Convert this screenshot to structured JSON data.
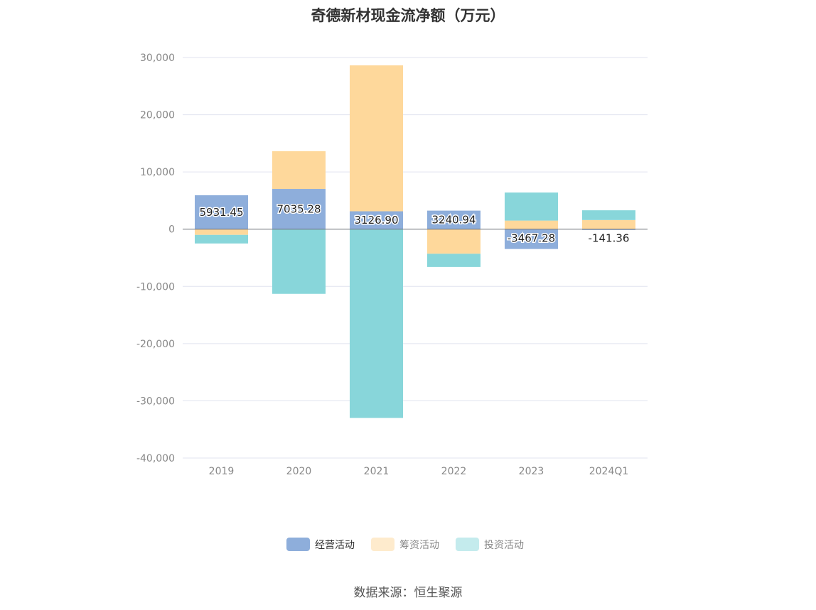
{
  "chart_data": {
    "type": "bar",
    "stacked": true,
    "title": "奇德新材现金流净额（万元）",
    "categories": [
      "2019",
      "2020",
      "2021",
      "2022",
      "2023",
      "2024Q1"
    ],
    "ylim": [
      -40000,
      30000
    ],
    "yticks": [
      30000,
      20000,
      10000,
      0,
      -10000,
      -20000,
      -30000,
      -40000
    ],
    "ytick_labels": [
      "30,000",
      "20,000",
      "10,000",
      "0",
      "-10,000",
      "-20,000",
      "-30,000",
      "-40,000"
    ],
    "grid": true,
    "legend_position": "bottom",
    "series": [
      {
        "name": "经营活动",
        "color": "#8eaedb",
        "values": [
          5931.45,
          7035.28,
          3126.9,
          3240.94,
          -3467.28,
          -141.36
        ]
      },
      {
        "name": "筹资活动",
        "color": "#fed89b",
        "values": [
          -1000,
          6600,
          25500,
          -4300,
          1500,
          1600
        ]
      },
      {
        "name": "投资活动",
        "color": "#88d6da",
        "values": [
          -1500,
          -11300,
          -33000,
          -2300,
          4900,
          1700
        ]
      }
    ],
    "data_labels": [
      "5931.45",
      "7035.28",
      "3126.90",
      "3240.94",
      "-3467.28",
      "-141.36"
    ]
  },
  "source": "数据来源：恒生聚源"
}
